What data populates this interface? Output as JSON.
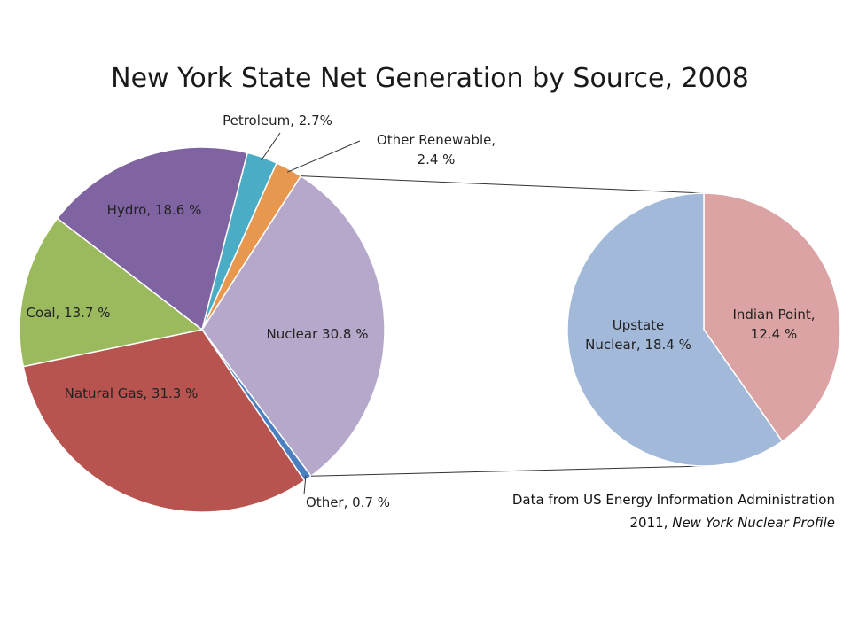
{
  "chart_data": [
    {
      "type": "pie",
      "title": "New York State Net Generation by Source, 2008",
      "slices": [
        {
          "label_lines": [
            "Nuclear 30.8 %"
          ],
          "value": 30.8,
          "color": "#b6a8cb"
        },
        {
          "label_lines": [
            "Other, 0.7 %"
          ],
          "value": 0.7,
          "color": "#4a7fc1"
        },
        {
          "label_lines": [
            "Natural Gas, 31.3 %"
          ],
          "value": 31.3,
          "color": "#b85450"
        },
        {
          "label_lines": [
            "Coal, 13.7 %"
          ],
          "value": 13.7,
          "color": "#9bba5e"
        },
        {
          "label_lines": [
            "Hydro, 18.6 %"
          ],
          "value": 18.6,
          "color": "#8064a2"
        },
        {
          "label_lines": [
            "Petroleum, 2.7%"
          ],
          "value": 2.7,
          "color": "#4bacc6"
        },
        {
          "label_lines": [
            "Other Renewable,",
            "2.4 %"
          ],
          "value": 2.4,
          "color": "#e8984e"
        }
      ]
    },
    {
      "type": "pie",
      "title": "",
      "slices": [
        {
          "label_lines": [
            "Indian Point,",
            "12.4 %"
          ],
          "value": 12.4,
          "color": "#dba3a3"
        },
        {
          "label_lines": [
            "Upstate",
            "Nuclear, 18.4 %"
          ],
          "value": 18.4,
          "color": "#a3b9da"
        }
      ]
    }
  ],
  "source_note": {
    "line1": "Data from US Energy Information Administration",
    "line2_prefix": "2011, ",
    "line2_italic": "New York Nuclear Profile"
  }
}
